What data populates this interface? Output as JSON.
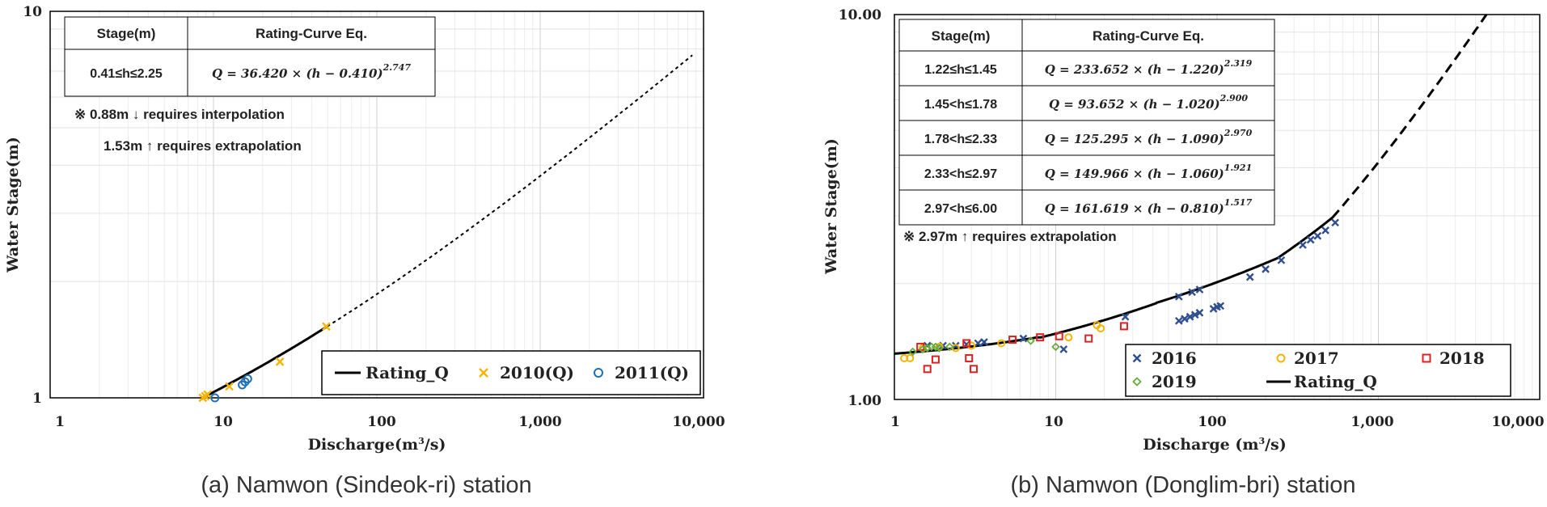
{
  "charts": [
    {
      "id": "a",
      "caption": "(a) Namwon (Sindeok-ri) station",
      "ylabel": "Water Stage(m)",
      "xlabel_main": "Discharge(m",
      "xlabel_sup": "3",
      "xlabel_end": "/s)",
      "x_ticks": [
        "1",
        "10",
        "100",
        "1,000",
        "10,000"
      ],
      "y_ticks": [
        "1",
        "10"
      ],
      "table": {
        "header": [
          "Stage(m)",
          "Rating-Curve Eq."
        ],
        "rows": [
          {
            "range": "0.41≤h≤2.25",
            "eq": "Q =  36.420 × (h − 0.410)",
            "exp": "2.747"
          }
        ]
      },
      "notes": [
        "※ 0.88m  ↓  requires interpolation",
        "1.53m  ↑  requires extrapolation"
      ],
      "legend": [
        "Rating_Q",
        "2010(Q)",
        "2011(Q)"
      ]
    },
    {
      "id": "b",
      "caption": "(b) Namwon (Donglim-bri) station",
      "ylabel": "Water Stage(m)",
      "xlabel_main": "Discharge (m",
      "xlabel_sup": "3",
      "xlabel_end": "/s)",
      "x_ticks": [
        "1",
        "10",
        "100",
        "1,000",
        "10,000"
      ],
      "y_ticks": [
        "1.00",
        "10.00"
      ],
      "table": {
        "header": [
          "Stage(m)",
          "Rating-Curve Eq."
        ],
        "rows": [
          {
            "range": "1.22≤h≤1.45",
            "eq": "Q = 233.652 × (h − 1.220)",
            "exp": "2.319"
          },
          {
            "range": "1.45<h≤1.78",
            "eq": "Q = 93.652 × (h − 1.020)",
            "exp": "2.900"
          },
          {
            "range": "1.78<h≤2.33",
            "eq": "Q = 125.295 × (h − 1.090)",
            "exp": "2.970"
          },
          {
            "range": "2.33<h≤2.97",
            "eq": "Q = 149.966 × (h − 1.060)",
            "exp": "1.921"
          },
          {
            "range": "2.97<h≤6.00",
            "eq": "Q = 161.619 × (h − 0.810)",
            "exp": "1.517"
          }
        ]
      },
      "notes": [
        "※ 2.97m  ↑  requires extrapolation"
      ],
      "legend": [
        "2016",
        "2017",
        "2018",
        "2019",
        "Rating_Q"
      ]
    }
  ],
  "colors": {
    "curve": "#000000",
    "y2010": "#f5b400",
    "y2011": "#1f6fb8",
    "y2016": "#2f4f8f",
    "y2017": "#f5b400",
    "y2018": "#e02020",
    "y2019": "#6aaa3a"
  },
  "chart_data": [
    {
      "type": "scatter",
      "title": "(a) Namwon (Sindeok-ri) station",
      "xlabel": "Discharge(m3/s)",
      "ylabel": "Water Stage(m)",
      "xscale": "log",
      "yscale": "log",
      "xlim": [
        1,
        10000
      ],
      "ylim": [
        1,
        10
      ],
      "curve": {
        "name": "Rating_Q",
        "a": 36.42,
        "h0": 0.41,
        "b": 2.747,
        "solid_h": [
          1.0,
          1.53
        ],
        "dashed_h": [
          1.53,
          7.7
        ]
      },
      "series": [
        {
          "name": "2010(Q)",
          "marker": "x",
          "points": [
            [
              8.6,
              1.0
            ],
            [
              8.9,
              1.01
            ],
            [
              9.2,
              1.02
            ],
            [
              12.5,
              1.07
            ],
            [
              25.5,
              1.24
            ],
            [
              49.0,
              1.53
            ]
          ]
        },
        {
          "name": "2011(Q)",
          "marker": "o",
          "points": [
            [
              10.2,
              1.0
            ],
            [
              15.0,
              1.08
            ],
            [
              15.6,
              1.1
            ],
            [
              16.2,
              1.12
            ]
          ]
        }
      ]
    },
    {
      "type": "scatter",
      "title": "(b) Namwon (Donglim-bri) station",
      "xlabel": "Discharge (m3/s)",
      "ylabel": "Water Stage(m)",
      "xscale": "log",
      "yscale": "log",
      "xlim": [
        1,
        10000
      ],
      "ylim": [
        1,
        10
      ],
      "curve": {
        "name": "Rating_Q",
        "segments": [
          {
            "a": 233.652,
            "h0": 1.22,
            "b": 2.319,
            "h": [
              1.3,
              1.45
            ]
          },
          {
            "a": 93.652,
            "h0": 1.02,
            "b": 2.9,
            "h": [
              1.45,
              1.78
            ]
          },
          {
            "a": 125.295,
            "h0": 1.09,
            "b": 2.97,
            "h": [
              1.78,
              2.33
            ]
          },
          {
            "a": 149.966,
            "h0": 1.06,
            "b": 1.921,
            "h": [
              2.33,
              2.97
            ]
          },
          {
            "a": 161.619,
            "h0": 0.81,
            "b": 1.517,
            "h": [
              2.97,
              10.0
            ]
          }
        ],
        "extrapolate_above_h": 2.97
      },
      "series": [
        {
          "name": "2016",
          "marker": "x",
          "points": [
            [
              1.6,
              1.38
            ],
            [
              2.0,
              1.38
            ],
            [
              2.4,
              1.38
            ],
            [
              2.8,
              1.39
            ],
            [
              3.3,
              1.4
            ],
            [
              3.6,
              1.41
            ],
            [
              6.3,
              1.44
            ],
            [
              11.2,
              1.35
            ],
            [
              27.0,
              1.64
            ],
            [
              58.0,
              1.6
            ],
            [
              63.0,
              1.62
            ],
            [
              68.0,
              1.64
            ],
            [
              73.0,
              1.66
            ],
            [
              78.0,
              1.68
            ],
            [
              95.0,
              1.72
            ],
            [
              100.0,
              1.74
            ],
            [
              105.0,
              1.75
            ],
            [
              58.0,
              1.85
            ],
            [
              70.0,
              1.9
            ],
            [
              78.0,
              1.93
            ],
            [
              160.0,
              2.08
            ],
            [
              200.0,
              2.18
            ],
            [
              250.0,
              2.3
            ],
            [
              340.0,
              2.52
            ],
            [
              380.0,
              2.6
            ],
            [
              420.0,
              2.66
            ],
            [
              470.0,
              2.75
            ],
            [
              540.0,
              2.88
            ]
          ]
        },
        {
          "name": "2017",
          "marker": "o",
          "points": [
            [
              1.15,
              1.28
            ],
            [
              1.25,
              1.28
            ],
            [
              1.5,
              1.36
            ],
            [
              1.9,
              1.37
            ],
            [
              2.4,
              1.36
            ],
            [
              3.0,
              1.38
            ],
            [
              4.6,
              1.4
            ],
            [
              12.0,
              1.45
            ],
            [
              18.0,
              1.56
            ],
            [
              19.0,
              1.53
            ]
          ]
        },
        {
          "name": "2018",
          "marker": "s",
          "points": [
            [
              1.45,
              1.37
            ],
            [
              1.6,
              1.2
            ],
            [
              1.8,
              1.27
            ],
            [
              2.8,
              1.4
            ],
            [
              2.9,
              1.28
            ],
            [
              3.1,
              1.2
            ],
            [
              5.4,
              1.43
            ],
            [
              8.0,
              1.45
            ],
            [
              10.5,
              1.46
            ],
            [
              16.0,
              1.44
            ],
            [
              26.5,
              1.55
            ]
          ]
        },
        {
          "name": "2019",
          "marker": "d",
          "points": [
            [
              1.3,
              1.33
            ],
            [
              1.5,
              1.35
            ],
            [
              1.6,
              1.36
            ],
            [
              1.7,
              1.37
            ],
            [
              1.8,
              1.37
            ],
            [
              1.9,
              1.36
            ],
            [
              2.2,
              1.37
            ],
            [
              7.0,
              1.42
            ],
            [
              10.0,
              1.37
            ]
          ]
        }
      ]
    }
  ]
}
